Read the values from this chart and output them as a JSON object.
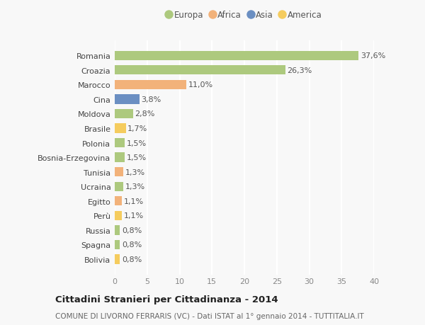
{
  "countries": [
    "Romania",
    "Croazia",
    "Marocco",
    "Cina",
    "Moldova",
    "Brasile",
    "Polonia",
    "Bosnia-Erzegovina",
    "Tunisia",
    "Ucraina",
    "Egitto",
    "Perù",
    "Russia",
    "Spagna",
    "Bolivia"
  ],
  "values": [
    37.6,
    26.3,
    11.0,
    3.8,
    2.8,
    1.7,
    1.5,
    1.5,
    1.3,
    1.3,
    1.1,
    1.1,
    0.8,
    0.8,
    0.8
  ],
  "labels": [
    "37,6%",
    "26,3%",
    "11,0%",
    "3,8%",
    "2,8%",
    "1,7%",
    "1,5%",
    "1,5%",
    "1,3%",
    "1,3%",
    "1,1%",
    "1,1%",
    "0,8%",
    "0,8%",
    "0,8%"
  ],
  "continents": [
    "Europa",
    "Europa",
    "Africa",
    "Asia",
    "Europa",
    "America",
    "Europa",
    "Europa",
    "Africa",
    "Europa",
    "Africa",
    "America",
    "Europa",
    "Europa",
    "America"
  ],
  "continent_colors": {
    "Europa": "#adc97e",
    "Africa": "#f2b27a",
    "Asia": "#6b8fc2",
    "America": "#f5cc5e"
  },
  "legend_order": [
    "Europa",
    "Africa",
    "Asia",
    "America"
  ],
  "title": "Cittadini Stranieri per Cittadinanza - 2014",
  "subtitle": "COMUNE DI LIVORNO FERRARIS (VC) - Dati ISTAT al 1° gennaio 2014 - TUTTITALIA.IT",
  "xlim": [
    0,
    40
  ],
  "xticks": [
    0,
    5,
    10,
    15,
    20,
    25,
    30,
    35,
    40
  ],
  "background_color": "#f8f8f8",
  "grid_color": "#ffffff",
  "bar_height": 0.65,
  "label_fontsize": 8,
  "ytick_fontsize": 8,
  "xtick_fontsize": 8,
  "title_fontsize": 9.5,
  "subtitle_fontsize": 7.5,
  "legend_fontsize": 8.5
}
